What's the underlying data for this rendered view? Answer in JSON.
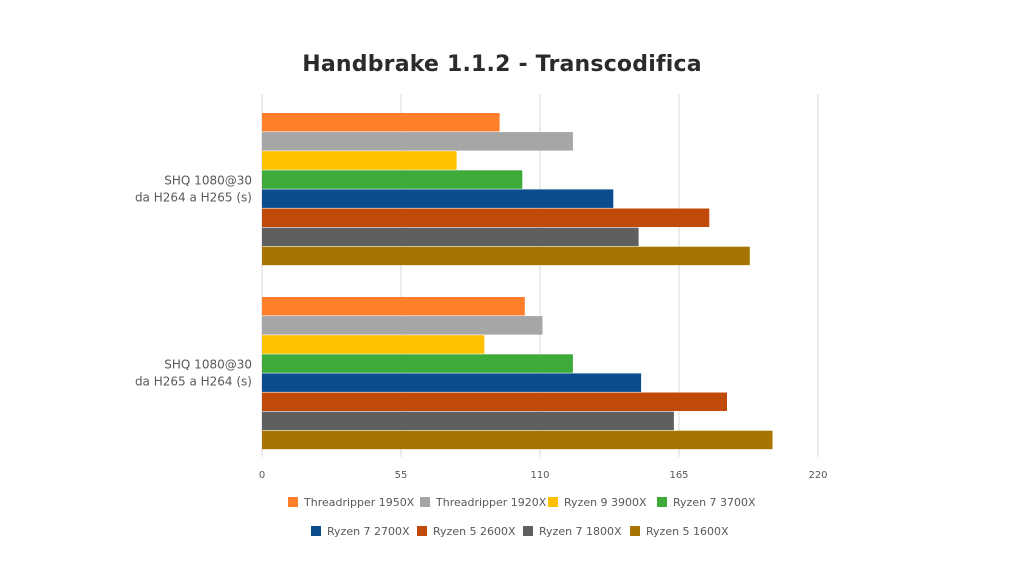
{
  "chart_data": {
    "type": "bar",
    "orientation": "horizontal",
    "title": "Handbrake 1.1.2 - Transcodifica",
    "categories": [
      [
        "SHQ 1080@30",
        "da H264 a H265 (s)"
      ],
      [
        "SHQ 1080@30",
        "da H265 a H264 (s)"
      ]
    ],
    "x_ticks": [
      0,
      55,
      110,
      165,
      220
    ],
    "xlim": [
      0,
      220
    ],
    "grid": "vertical",
    "legend_position": "bottom",
    "series": [
      {
        "name": "Threadripper 1950X",
        "color": "#FF7F2A",
        "values": [
          94,
          104
        ]
      },
      {
        "name": "Threadripper 1920X",
        "color": "#A6A6A6",
        "values": [
          123,
          111
        ]
      },
      {
        "name": "Ryzen 9 3900X",
        "color": "#FFC000",
        "values": [
          77,
          88
        ]
      },
      {
        "name": "Ryzen 7 3700X",
        "color": "#3DAA3A",
        "values": [
          103,
          123
        ]
      },
      {
        "name": "Ryzen 7 2700X",
        "color": "#0B4C8C",
        "values": [
          139,
          150
        ]
      },
      {
        "name": "Ryzen 5 2600X",
        "color": "#BF4A0A",
        "values": [
          177,
          184
        ]
      },
      {
        "name": "Ryzen 7 1800X",
        "color": "#5F5F5F",
        "values": [
          149,
          163
        ]
      },
      {
        "name": "Ryzen 5 1600X",
        "color": "#A67400",
        "values": [
          193,
          202
        ]
      }
    ]
  }
}
